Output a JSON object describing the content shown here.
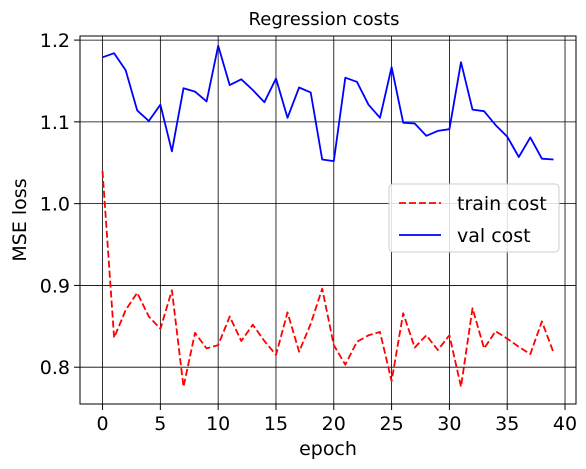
{
  "chart_data": {
    "type": "line",
    "title": "Regression costs",
    "xlabel": "epoch",
    "ylabel": "MSE loss",
    "xlim": [
      -1.95,
      40.95
    ],
    "ylim": [
      0.755,
      1.205
    ],
    "xticks": [
      0,
      5,
      10,
      15,
      20,
      25,
      30,
      35,
      40
    ],
    "yticks": [
      0.8,
      0.9,
      1.0,
      1.1,
      1.2
    ],
    "ytick_labels": [
      "0.8",
      "0.9",
      "1.0",
      "1.1",
      "1.2"
    ],
    "grid": true,
    "legend_position": "center-right",
    "x": [
      0,
      1,
      2,
      3,
      4,
      5,
      6,
      7,
      8,
      9,
      10,
      11,
      12,
      13,
      14,
      15,
      16,
      17,
      18,
      19,
      20,
      21,
      22,
      23,
      24,
      25,
      26,
      27,
      28,
      29,
      30,
      31,
      32,
      33,
      34,
      35,
      36,
      37,
      38,
      39
    ],
    "series": [
      {
        "name": "train cost",
        "color": "#ff0000",
        "style": "dashed",
        "values": [
          1.04,
          0.836,
          0.87,
          0.891,
          0.862,
          0.847,
          0.894,
          0.776,
          0.842,
          0.823,
          0.827,
          0.862,
          0.832,
          0.852,
          0.832,
          0.815,
          0.867,
          0.819,
          0.853,
          0.896,
          0.827,
          0.803,
          0.831,
          0.839,
          0.843,
          0.783,
          0.866,
          0.824,
          0.839,
          0.821,
          0.839,
          0.776,
          0.872,
          0.823,
          0.844,
          0.835,
          0.825,
          0.816,
          0.856,
          0.818
        ]
      },
      {
        "name": "val cost",
        "color": "#0000ff",
        "style": "solid",
        "values": [
          1.179,
          1.184,
          1.163,
          1.114,
          1.101,
          1.121,
          1.064,
          1.141,
          1.137,
          1.125,
          1.193,
          1.145,
          1.152,
          1.139,
          1.124,
          1.153,
          1.105,
          1.142,
          1.136,
          1.054,
          1.052,
          1.154,
          1.149,
          1.121,
          1.105,
          1.167,
          1.099,
          1.098,
          1.083,
          1.089,
          1.091,
          1.173,
          1.115,
          1.113,
          1.096,
          1.082,
          1.057,
          1.081,
          1.055,
          1.054
        ]
      }
    ]
  }
}
